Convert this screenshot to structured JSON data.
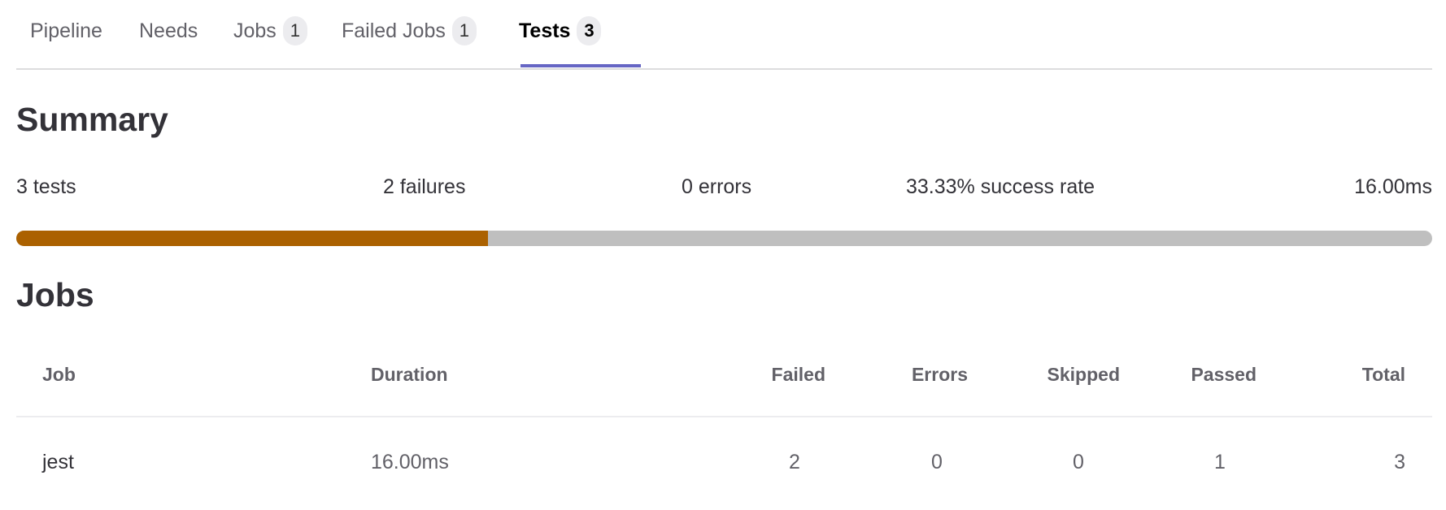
{
  "tabs": [
    {
      "label": "Pipeline"
    },
    {
      "label": "Needs"
    },
    {
      "label": "Jobs",
      "count": "1"
    },
    {
      "label": "Failed Jobs",
      "count": "1"
    },
    {
      "label": "Tests",
      "count": "3",
      "active": true
    }
  ],
  "summary": {
    "title": "Summary",
    "tests": "3 tests",
    "failures": "2 failures",
    "errors": "0 errors",
    "success_rate": "33.33% success rate",
    "duration": "16.00ms",
    "progress_percent": 33.33,
    "colors": {
      "fill": "#ab6100",
      "track": "#bfbfbf"
    }
  },
  "jobs": {
    "title": "Jobs",
    "columns": [
      "Job",
      "Duration",
      "Failed",
      "Errors",
      "Skipped",
      "Passed",
      "Total"
    ],
    "rows": [
      [
        "jest",
        "16.00ms",
        "2",
        "0",
        "0",
        "1",
        "3"
      ]
    ]
  },
  "accent_color": "#6666c4"
}
